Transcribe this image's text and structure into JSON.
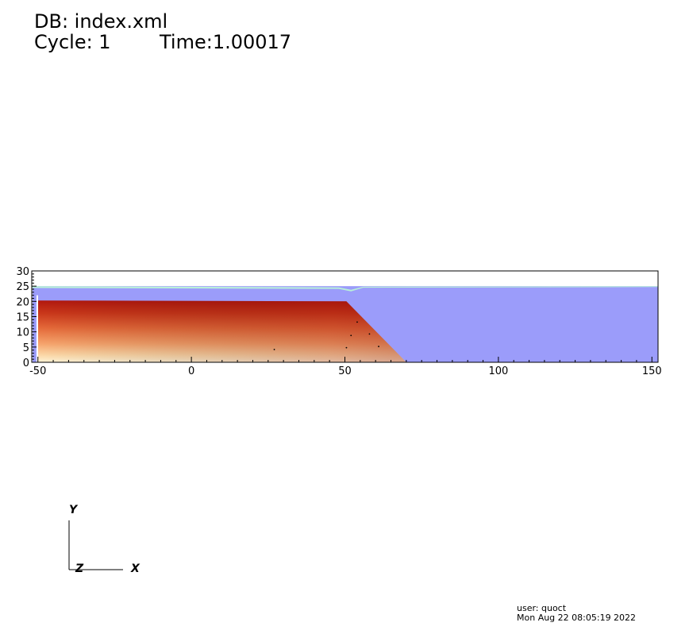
{
  "header": {
    "db_label": "DB: index.xml",
    "cycle_label": "Cycle: 1",
    "time_label": "Time:1.00017"
  },
  "plot": {
    "x_range": [
      -52,
      152
    ],
    "y_range": [
      0,
      30
    ],
    "x_ticks": [
      "-50",
      "0",
      "50",
      "100",
      "150"
    ],
    "y_ticks": [
      "0",
      "5",
      "10",
      "15",
      "20",
      "25",
      "30"
    ],
    "colors": {
      "water": "#9b9cfa",
      "water_surface": "#b8f0d8",
      "soil_top": "#b01a10",
      "soil_bottom": "#fff3d0",
      "frame": "#000000",
      "wall": "#ffffff"
    }
  },
  "triad": {
    "y_label": "Y",
    "z_label": "Z",
    "x_label": "X"
  },
  "footer": {
    "user": "user: quoct",
    "date": "Mon Aug 22 08:05:19 2022"
  }
}
